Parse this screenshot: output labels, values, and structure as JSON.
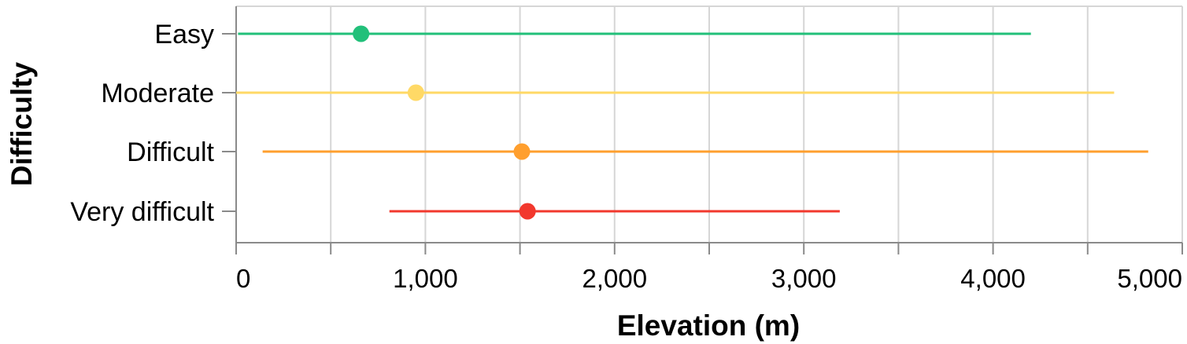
{
  "chart_data": {
    "type": "range-dot",
    "xlabel": "Elevation (m)",
    "ylabel": "Difficulty",
    "xlim": [
      0,
      5000
    ],
    "x_ticks": [
      0,
      1000,
      2000,
      3000,
      4000,
      5000
    ],
    "x_tick_labels": [
      "0",
      "1,000",
      "2,000",
      "3,000",
      "4,000",
      "5,000"
    ],
    "grid": true,
    "categories": [
      "Easy",
      "Moderate",
      "Difficult",
      "Very difficult"
    ],
    "series": [
      {
        "category": "Easy",
        "min": 10,
        "max": 4200,
        "point": 660,
        "color": "#22c07a"
      },
      {
        "category": "Moderate",
        "min": 0,
        "max": 4640,
        "point": 950,
        "color": "#ffd966"
      },
      {
        "category": "Difficult",
        "min": 140,
        "max": 4820,
        "point": 1510,
        "color": "#ff9f2e"
      },
      {
        "category": "Very difficult",
        "min": 810,
        "max": 3190,
        "point": 1540,
        "color": "#f2382d"
      }
    ]
  }
}
